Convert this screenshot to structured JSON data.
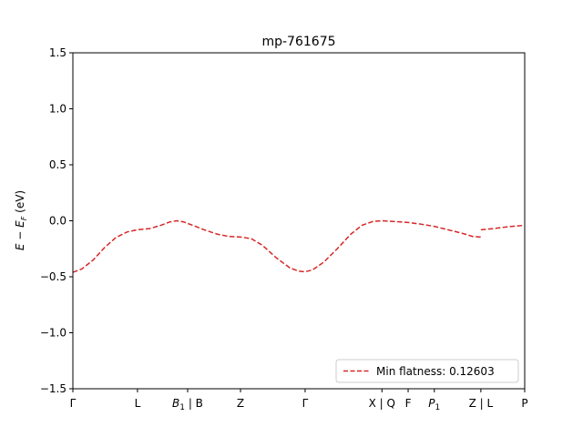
{
  "chart_data": {
    "type": "line",
    "title": "mp-761675",
    "xlabel": "",
    "ylabel_html": "E − E_F (eV)",
    "ylim": [
      -1.5,
      1.5
    ],
    "yticks": [
      1.5,
      1.0,
      0.5,
      0.0,
      -0.5,
      -1.0,
      -1.5
    ],
    "ytick_labels": [
      "1.5",
      "1.0",
      "0.5",
      "0.0",
      "−0.5",
      "−1.0",
      "−1.5"
    ],
    "xlim": [
      0,
      1
    ],
    "xticks": [
      {
        "pos": 0.0,
        "label": "Γ",
        "sub": ""
      },
      {
        "pos": 0.143,
        "label": "L",
        "sub": ""
      },
      {
        "pos": 0.254,
        "label": "B",
        "sub": "1",
        "suffix": " | B",
        "italic": true
      },
      {
        "pos": 0.371,
        "label": "Z",
        "sub": ""
      },
      {
        "pos": 0.514,
        "label": "Γ",
        "sub": ""
      },
      {
        "pos": 0.684,
        "label": "X | Q",
        "sub": ""
      },
      {
        "pos": 0.742,
        "label": "F",
        "sub": ""
      },
      {
        "pos": 0.8,
        "label": "P",
        "sub": "1",
        "italic": true
      },
      {
        "pos": 0.903,
        "label": "Z | L",
        "sub": ""
      },
      {
        "pos": 1.0,
        "label": "P",
        "sub": ""
      }
    ],
    "series": [
      {
        "name": "Min flatness: 0.12603",
        "color": "#d62728",
        "dash": true,
        "segments": [
          [
            [
              0.0,
              -0.46
            ],
            [
              0.02,
              -0.43
            ],
            [
              0.045,
              -0.35
            ],
            [
              0.07,
              -0.24
            ],
            [
              0.095,
              -0.15
            ],
            [
              0.12,
              -0.1
            ],
            [
              0.143,
              -0.08
            ],
            [
              0.17,
              -0.07
            ],
            [
              0.195,
              -0.04
            ],
            [
              0.215,
              -0.01
            ],
            [
              0.23,
              0.0
            ],
            [
              0.245,
              -0.01
            ],
            [
              0.265,
              -0.04
            ],
            [
              0.29,
              -0.08
            ],
            [
              0.32,
              -0.12
            ],
            [
              0.345,
              -0.14
            ],
            [
              0.371,
              -0.145
            ],
            [
              0.395,
              -0.16
            ],
            [
              0.42,
              -0.22
            ],
            [
              0.45,
              -0.33
            ],
            [
              0.48,
              -0.42
            ],
            [
              0.5,
              -0.45
            ],
            [
              0.514,
              -0.455
            ],
            [
              0.53,
              -0.44
            ],
            [
              0.555,
              -0.37
            ],
            [
              0.585,
              -0.25
            ],
            [
              0.615,
              -0.12
            ],
            [
              0.64,
              -0.04
            ],
            [
              0.665,
              -0.005
            ],
            [
              0.684,
              0.0
            ],
            [
              0.705,
              -0.005
            ],
            [
              0.742,
              -0.015
            ],
            [
              0.77,
              -0.03
            ],
            [
              0.8,
              -0.05
            ],
            [
              0.83,
              -0.08
            ],
            [
              0.86,
              -0.11
            ],
            [
              0.885,
              -0.14
            ],
            [
              0.903,
              -0.145
            ]
          ],
          [
            [
              0.903,
              -0.08
            ],
            [
              0.93,
              -0.07
            ],
            [
              0.96,
              -0.055
            ],
            [
              1.0,
              -0.04
            ]
          ]
        ]
      }
    ],
    "legend": {
      "placement": "lower-right"
    }
  }
}
